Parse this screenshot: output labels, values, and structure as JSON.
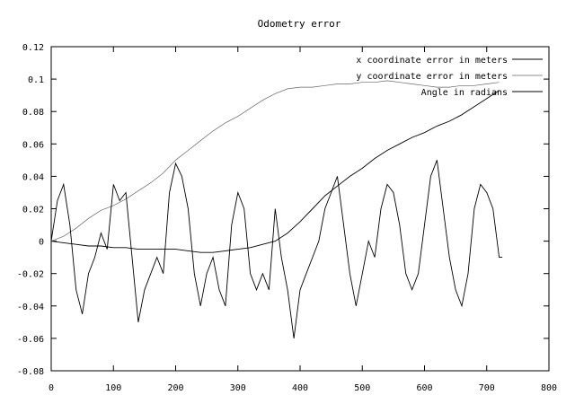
{
  "chart_data": {
    "type": "line",
    "title": "Odometry error",
    "xlabel": "",
    "ylabel": "",
    "xlim": [
      0,
      800
    ],
    "ylim": [
      -0.08,
      0.12
    ],
    "x_ticks": [
      0,
      100,
      200,
      300,
      400,
      500,
      600,
      700,
      800
    ],
    "y_ticks": [
      -0.08,
      -0.06,
      -0.04,
      -0.02,
      0,
      0.02,
      0.04,
      0.06,
      0.08,
      0.1,
      0.12
    ],
    "x_tick_labels": [
      "0",
      "100",
      "200",
      "300",
      "400",
      "500",
      "600",
      "700",
      "800"
    ],
    "y_tick_labels": [
      "-0.08",
      "-0.06",
      "-0.04",
      "-0.02",
      "0",
      "0.02",
      "0.04",
      "0.06",
      "0.08",
      "0.1",
      "0.12"
    ],
    "grid": false,
    "legend_position": "top-right",
    "series": [
      {
        "name": "x coordinate error in meters",
        "color": "#000000",
        "x": [
          0,
          20,
          40,
          60,
          80,
          100,
          120,
          140,
          160,
          180,
          200,
          220,
          240,
          260,
          280,
          300,
          320,
          340,
          360,
          380,
          400,
          420,
          440,
          460,
          480,
          500,
          520,
          540,
          560,
          580,
          600,
          620,
          640,
          660,
          680,
          700,
          720
        ],
        "y": [
          0.0,
          -0.001,
          -0.002,
          -0.003,
          -0.003,
          -0.004,
          -0.004,
          -0.005,
          -0.005,
          -0.005,
          -0.005,
          -0.006,
          -0.007,
          -0.007,
          -0.006,
          -0.005,
          -0.004,
          -0.002,
          0.0,
          0.005,
          0.012,
          0.02,
          0.028,
          0.034,
          0.04,
          0.045,
          0.051,
          0.056,
          0.06,
          0.064,
          0.067,
          0.071,
          0.074,
          0.078,
          0.083,
          0.088,
          0.093
        ]
      },
      {
        "name": "y coordinate error in meters",
        "color": "#000000",
        "x": [
          0,
          20,
          40,
          60,
          80,
          100,
          120,
          140,
          160,
          180,
          200,
          220,
          240,
          260,
          280,
          300,
          320,
          340,
          360,
          380,
          400,
          420,
          440,
          460,
          480,
          500,
          520,
          540,
          560,
          580,
          600,
          620,
          640,
          660,
          680,
          700,
          720
        ],
        "y": [
          0.0,
          0.003,
          0.008,
          0.014,
          0.019,
          0.022,
          0.026,
          0.031,
          0.036,
          0.042,
          0.05,
          0.056,
          0.062,
          0.068,
          0.073,
          0.077,
          0.082,
          0.087,
          0.091,
          0.094,
          0.095,
          0.095,
          0.096,
          0.097,
          0.097,
          0.098,
          0.098,
          0.099,
          0.098,
          0.097,
          0.096,
          0.095,
          0.095,
          0.096,
          0.096,
          0.097,
          0.098
        ]
      },
      {
        "name": "Angle in radians",
        "color": "#000000",
        "x": [
          0,
          10,
          20,
          30,
          40,
          50,
          60,
          70,
          80,
          90,
          100,
          110,
          120,
          130,
          140,
          150,
          160,
          170,
          180,
          190,
          200,
          210,
          220,
          230,
          240,
          250,
          260,
          270,
          280,
          290,
          300,
          310,
          320,
          330,
          340,
          350,
          360,
          370,
          380,
          390,
          400,
          410,
          420,
          430,
          440,
          450,
          460,
          470,
          480,
          490,
          500,
          510,
          520,
          530,
          540,
          550,
          560,
          570,
          580,
          590,
          600,
          610,
          620,
          630,
          640,
          650,
          660,
          670,
          680,
          690,
          700,
          710,
          720,
          725
        ],
        "y": [
          0.0,
          0.025,
          0.035,
          0.01,
          -0.03,
          -0.045,
          -0.02,
          -0.01,
          0.005,
          -0.005,
          0.035,
          0.025,
          0.03,
          -0.01,
          -0.05,
          -0.03,
          -0.02,
          -0.01,
          -0.02,
          0.03,
          0.048,
          0.04,
          0.02,
          -0.02,
          -0.04,
          -0.02,
          -0.01,
          -0.03,
          -0.04,
          0.01,
          0.03,
          0.02,
          -0.02,
          -0.03,
          -0.02,
          -0.03,
          0.02,
          -0.01,
          -0.03,
          -0.06,
          -0.03,
          -0.02,
          -0.01,
          0.0,
          0.02,
          0.03,
          0.04,
          0.01,
          -0.02,
          -0.04,
          -0.02,
          0.0,
          -0.01,
          0.02,
          0.035,
          0.03,
          0.01,
          -0.02,
          -0.03,
          -0.02,
          0.01,
          0.04,
          0.05,
          0.02,
          -0.01,
          -0.03,
          -0.04,
          -0.02,
          0.02,
          0.035,
          0.03,
          0.02,
          -0.01,
          -0.01
        ]
      }
    ]
  }
}
